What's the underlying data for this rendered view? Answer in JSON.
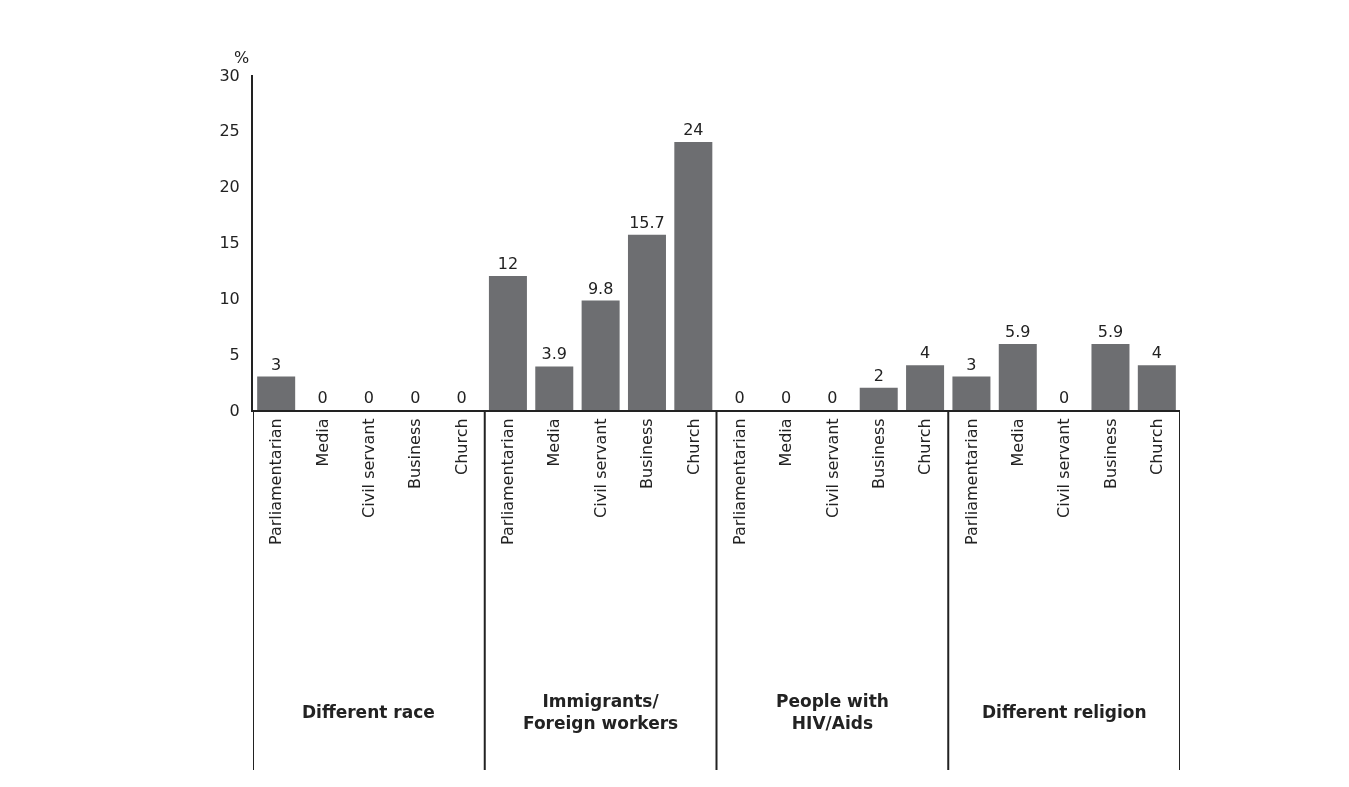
{
  "chart_data": {
    "type": "bar",
    "ylabel": "%",
    "categories": [
      "Parliamentarian",
      "Media",
      "Civil servant",
      "Business",
      "Church",
      "Parliamentarian",
      "Media",
      "Civil servant",
      "Business",
      "Church",
      "Parliamentarian",
      "Media",
      "Civil servant",
      "Business",
      "Church",
      "Parliamentarian",
      "Media",
      "Civil servant",
      "Business",
      "Church"
    ],
    "values": [
      3,
      0,
      0,
      0,
      0,
      12,
      3.9,
      9.8,
      15.7,
      24,
      0,
      0,
      0,
      2,
      4,
      3,
      5.9,
      0,
      5.9,
      4
    ],
    "color": "#6d6e71",
    "data_labels": true,
    "ylim": [
      0,
      30
    ],
    "yticks": [
      0,
      5,
      10,
      15,
      20,
      25,
      30
    ],
    "annotations": [
      "Different race",
      "Immigrants/\nForeign workers",
      "People with\nHIV/Aids",
      "Different religion"
    ]
  }
}
